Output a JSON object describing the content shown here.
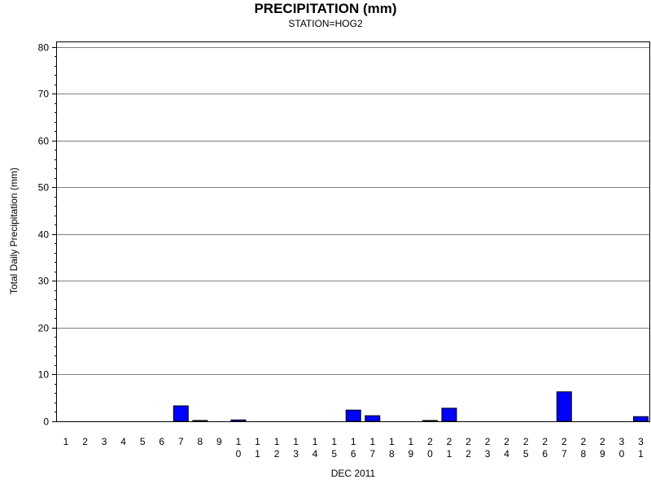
{
  "chart_data": {
    "type": "bar",
    "title": "PRECIPITATION (mm)",
    "subtitle": "STATION=HOG2",
    "xlabel": "DEC 2011",
    "ylabel": "Total Daily Precipitation (mm)",
    "ylim": [
      0,
      81
    ],
    "yticks": [
      0,
      10,
      20,
      30,
      40,
      50,
      60,
      70,
      80
    ],
    "grid": true,
    "categories": [
      "1",
      "2",
      "3",
      "4",
      "5",
      "6",
      "7",
      "8",
      "9",
      "10",
      "11",
      "12",
      "13",
      "14",
      "15",
      "16",
      "17",
      "18",
      "19",
      "20",
      "21",
      "22",
      "23",
      "24",
      "25",
      "26",
      "27",
      "28",
      "29",
      "30",
      "31"
    ],
    "values": [
      0,
      0,
      0,
      0,
      0,
      0,
      3.3,
      0.1,
      0,
      0.3,
      0,
      0,
      0,
      0,
      0,
      2.4,
      1.2,
      0,
      0,
      0.1,
      2.8,
      0,
      0,
      0,
      0,
      0,
      6.3,
      0,
      0,
      0,
      1.0
    ],
    "bar_color": "#0000ff"
  }
}
